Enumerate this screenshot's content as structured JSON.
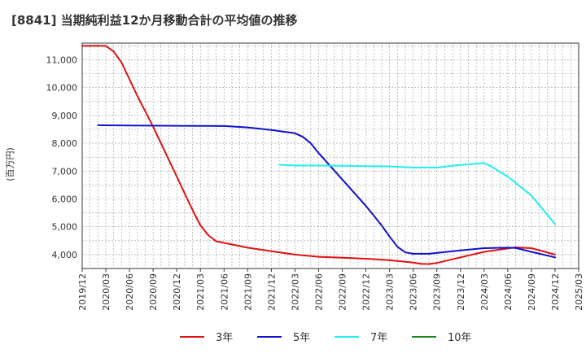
{
  "chart_data": {
    "type": "line",
    "title": "[8841]  当期純利益12か月移動合計の平均値の推移",
    "xlabel": "",
    "ylabel": "(百万円)",
    "xlim": [
      "2019/12",
      "2025/03"
    ],
    "ylim": [
      3500,
      11600
    ],
    "x_ticks": [
      "2019/12",
      "2020/03",
      "2020/06",
      "2020/09",
      "2020/12",
      "2021/03",
      "2021/06",
      "2021/09",
      "2021/12",
      "2022/03",
      "2022/06",
      "2022/09",
      "2022/12",
      "2023/03",
      "2023/06",
      "2023/09",
      "2023/12",
      "2024/03",
      "2024/06",
      "2024/09",
      "2024/12",
      "2025/03"
    ],
    "y_ticks": [
      4000,
      5000,
      6000,
      7000,
      8000,
      9000,
      10000,
      11000
    ],
    "y_tick_labels": [
      "4,000",
      "5,000",
      "6,000",
      "7,000",
      "8,000",
      "9,000",
      "10,000",
      "11,000"
    ],
    "grid": true,
    "series": [
      {
        "name": "3年",
        "color": "#dd1111",
        "points": [
          [
            "2019/12",
            11500
          ],
          [
            "2020/01",
            11500
          ],
          [
            "2020/02",
            11500
          ],
          [
            "2020/03",
            11500
          ],
          [
            "2020/04",
            11300
          ],
          [
            "2020/05",
            10900
          ],
          [
            "2020/06",
            10300
          ],
          [
            "2020/07",
            9700
          ],
          [
            "2020/08",
            9150
          ],
          [
            "2020/09",
            8600
          ],
          [
            "2020/10",
            8000
          ],
          [
            "2020/11",
            7400
          ],
          [
            "2020/12",
            6800
          ],
          [
            "2021/01",
            6200
          ],
          [
            "2021/02",
            5600
          ],
          [
            "2021/03",
            5050
          ],
          [
            "2021/04",
            4700
          ],
          [
            "2021/05",
            4480
          ],
          [
            "2021/06",
            4420
          ],
          [
            "2021/09",
            4250
          ],
          [
            "2021/12",
            4120
          ],
          [
            "2022/03",
            4000
          ],
          [
            "2022/06",
            3920
          ],
          [
            "2022/09",
            3890
          ],
          [
            "2022/12",
            3850
          ],
          [
            "2023/03",
            3800
          ],
          [
            "2023/06",
            3710
          ],
          [
            "2023/07",
            3670
          ],
          [
            "2023/08",
            3660
          ],
          [
            "2023/09",
            3700
          ],
          [
            "2023/12",
            3900
          ],
          [
            "2024/03",
            4100
          ],
          [
            "2024/06",
            4220
          ],
          [
            "2024/07",
            4260
          ],
          [
            "2024/09",
            4230
          ],
          [
            "2024/12",
            4000
          ]
        ]
      },
      {
        "name": "5年",
        "color": "#1111cc",
        "points": [
          [
            "2020/02",
            8650
          ],
          [
            "2020/06",
            8640
          ],
          [
            "2020/12",
            8630
          ],
          [
            "2021/06",
            8620
          ],
          [
            "2021/09",
            8570
          ],
          [
            "2021/12",
            8480
          ],
          [
            "2022/03",
            8360
          ],
          [
            "2022/04",
            8230
          ],
          [
            "2022/05",
            8000
          ],
          [
            "2022/06",
            7650
          ],
          [
            "2022/09",
            6700
          ],
          [
            "2022/12",
            5750
          ],
          [
            "2023/02",
            5050
          ],
          [
            "2023/03",
            4650
          ],
          [
            "2023/04",
            4280
          ],
          [
            "2023/05",
            4080
          ],
          [
            "2023/06",
            4030
          ],
          [
            "2023/08",
            4030
          ],
          [
            "2023/12",
            4150
          ],
          [
            "2024/03",
            4230
          ],
          [
            "2024/06",
            4250
          ],
          [
            "2024/07",
            4240
          ],
          [
            "2024/09",
            4100
          ],
          [
            "2024/12",
            3900
          ]
        ]
      },
      {
        "name": "7年",
        "color": "#22eeee",
        "points": [
          [
            "2022/01",
            7230
          ],
          [
            "2022/03",
            7200
          ],
          [
            "2022/06",
            7200
          ],
          [
            "2022/09",
            7190
          ],
          [
            "2022/12",
            7180
          ],
          [
            "2023/03",
            7170
          ],
          [
            "2023/06",
            7130
          ],
          [
            "2023/09",
            7130
          ],
          [
            "2023/12",
            7220
          ],
          [
            "2024/03",
            7290
          ],
          [
            "2024/04",
            7150
          ],
          [
            "2024/06",
            6800
          ],
          [
            "2024/09",
            6120
          ],
          [
            "2024/12",
            5100
          ]
        ]
      },
      {
        "name": "10年",
        "color": "#228822",
        "points": []
      }
    ],
    "legend": [
      "3年",
      "5年",
      "7年",
      "10年"
    ],
    "legend_position": "bottom"
  }
}
